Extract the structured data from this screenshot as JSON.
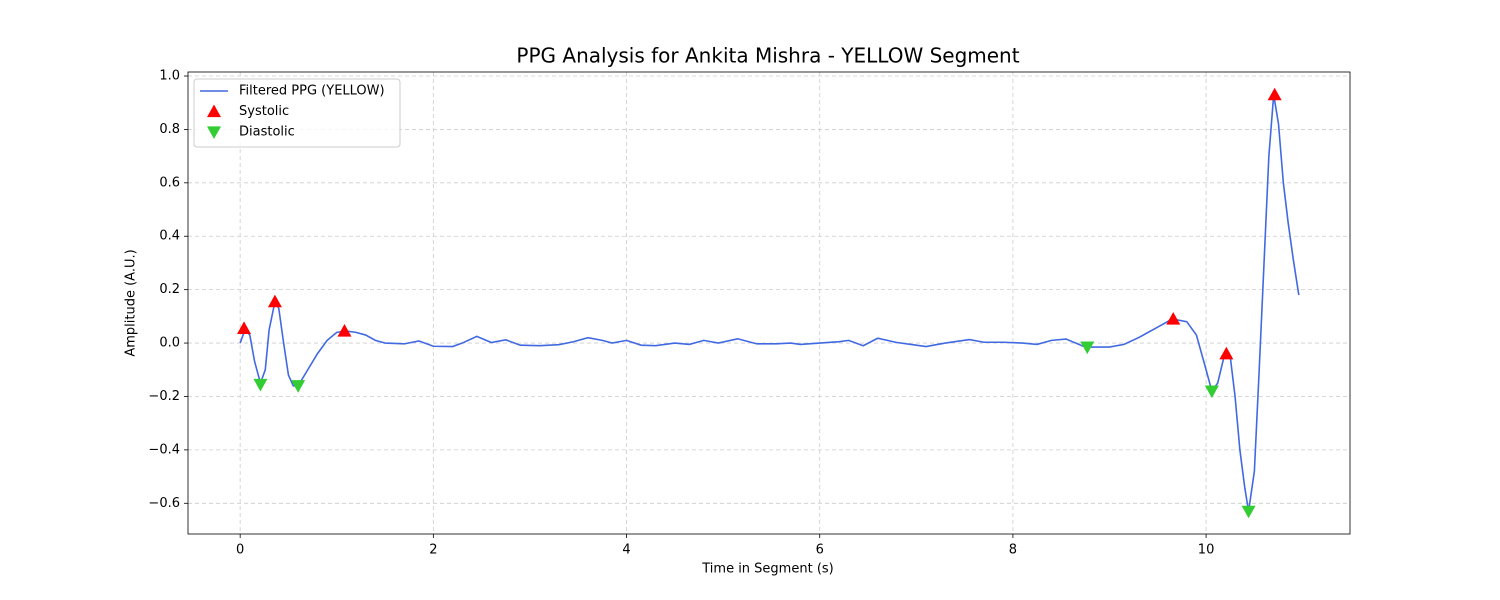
{
  "chart_data": {
    "type": "line",
    "title": "PPG Analysis for Ankita Mishra - YELLOW Segment",
    "xlabel": "Time in Segment (s)",
    "ylabel": "Amplitude (A.U.)",
    "xlim": [
      -0.54,
      11.49
    ],
    "ylim": [
      -0.715,
      1.015
    ],
    "xticks": [
      0,
      2,
      4,
      6,
      8,
      10
    ],
    "yticks": [
      {
        "value": -0.6,
        "label": "−0.6"
      },
      {
        "value": -0.4,
        "label": "−0.4"
      },
      {
        "value": -0.2,
        "label": "−0.2"
      },
      {
        "value": 0,
        "label": "0.0"
      },
      {
        "value": 0.2,
        "label": "0.2"
      },
      {
        "value": 0.4,
        "label": "0.4"
      },
      {
        "value": 0.6,
        "label": "0.6"
      },
      {
        "value": 0.8,
        "label": "0.8"
      },
      {
        "value": 1,
        "label": "1.0"
      }
    ],
    "grid": true,
    "legend": "upper left",
    "series": [
      {
        "name": "Filtered PPG (YELLOW)",
        "color": "#4169e1",
        "marker": null,
        "x": [
          0.0,
          0.05,
          0.1,
          0.15,
          0.21,
          0.26,
          0.3,
          0.36,
          0.4,
          0.45,
          0.5,
          0.55,
          0.6,
          0.7,
          0.8,
          0.9,
          1.0,
          1.1,
          1.2,
          1.3,
          1.4,
          1.5,
          1.7,
          1.85,
          2.0,
          2.2,
          2.3,
          2.45,
          2.6,
          2.75,
          2.9,
          3.1,
          3.3,
          3.45,
          3.6,
          3.75,
          3.85,
          4.0,
          4.15,
          4.3,
          4.5,
          4.65,
          4.8,
          4.95,
          5.15,
          5.35,
          5.55,
          5.7,
          5.8,
          6.0,
          6.2,
          6.3,
          6.45,
          6.6,
          6.8,
          7.0,
          7.1,
          7.3,
          7.55,
          7.7,
          7.9,
          8.1,
          8.25,
          8.4,
          8.55,
          8.75,
          9.0,
          9.15,
          9.3,
          9.5,
          9.65,
          9.8,
          9.9,
          10.0,
          10.06,
          10.12,
          10.18,
          10.21,
          10.25,
          10.3,
          10.35,
          10.4,
          10.44,
          10.5,
          10.55,
          10.6,
          10.65,
          10.7,
          10.75,
          10.8,
          10.85,
          10.9,
          10.96
        ],
        "values": [
          0.0,
          0.05,
          0.03,
          -0.07,
          -0.15,
          -0.1,
          0.05,
          0.155,
          0.13,
          0.0,
          -0.12,
          -0.16,
          -0.16,
          -0.1,
          -0.04,
          0.01,
          0.04,
          0.045,
          0.04,
          0.03,
          0.01,
          0.0,
          -0.003,
          0.008,
          -0.012,
          -0.013,
          0.0,
          0.025,
          0.002,
          0.012,
          -0.008,
          -0.01,
          -0.006,
          0.005,
          0.02,
          0.01,
          0.0,
          0.01,
          -0.008,
          -0.01,
          0.0,
          -0.005,
          0.01,
          0.0,
          0.016,
          -0.003,
          -0.003,
          0.0,
          -0.005,
          0.0,
          0.005,
          0.01,
          -0.01,
          0.018,
          0.002,
          -0.008,
          -0.013,
          0.0,
          0.013,
          0.003,
          0.003,
          0.0,
          -0.005,
          0.01,
          0.015,
          -0.015,
          -0.015,
          -0.005,
          0.02,
          0.06,
          0.09,
          0.08,
          0.03,
          -0.1,
          -0.18,
          -0.15,
          -0.06,
          -0.04,
          -0.05,
          -0.2,
          -0.4,
          -0.54,
          -0.63,
          -0.48,
          -0.1,
          0.3,
          0.7,
          0.93,
          0.82,
          0.6,
          0.45,
          0.32,
          0.18
        ]
      },
      {
        "name": "Systolic",
        "color": "#ff0000",
        "marker": "^",
        "x": [
          0.04,
          0.36,
          1.08,
          9.66,
          10.21,
          10.71
        ],
        "values": [
          0.055,
          0.155,
          0.045,
          0.09,
          -0.04,
          0.93
        ]
      },
      {
        "name": "Diastolic",
        "color": "#32cd32",
        "marker": "v",
        "x": [
          0.21,
          0.6,
          8.77,
          10.06,
          10.44
        ],
        "values": [
          -0.155,
          -0.16,
          -0.015,
          -0.18,
          -0.63
        ]
      }
    ]
  }
}
